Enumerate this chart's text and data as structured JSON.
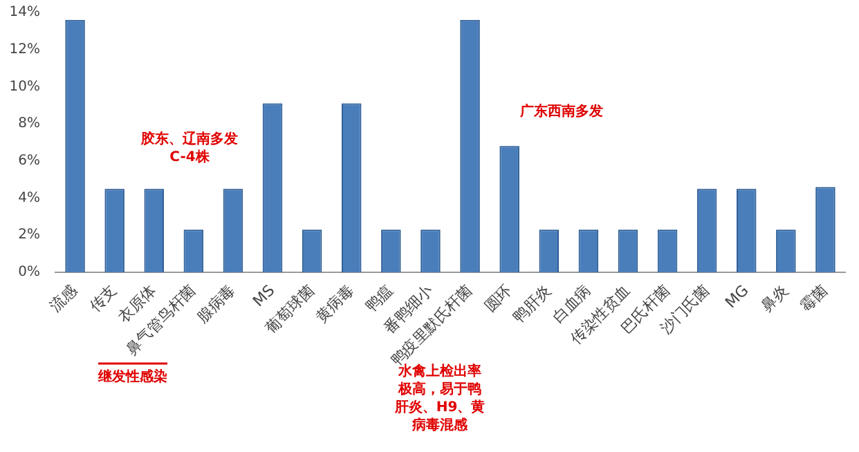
{
  "chart_data": {
    "type": "bar",
    "categories": [
      "流感",
      "传支",
      "衣原体",
      "鼻气管鸟杆菌",
      "腺病毒",
      "MS",
      "葡萄球菌",
      "黄病毒",
      "鸭瘟",
      "番鸭细小",
      "鸭疫里默氏杆菌",
      "圆环",
      "鸭肝炎",
      "白血病",
      "传染性贫血",
      "巴氏杆菌",
      "沙门氏菌",
      "MG",
      "鼻炎",
      "霉菌"
    ],
    "values": [
      13.6,
      4.5,
      4.5,
      2.3,
      4.5,
      9.1,
      2.3,
      9.1,
      2.3,
      2.3,
      13.6,
      6.8,
      2.3,
      2.3,
      2.3,
      2.3,
      4.5,
      4.5,
      2.3,
      4.6
    ],
    "color": "#4a7ebb",
    "ylim": [
      0,
      14
    ],
    "yticks": [
      {
        "value": 0,
        "label": "0%"
      },
      {
        "value": 2,
        "label": "2%"
      },
      {
        "value": 4,
        "label": "4%"
      },
      {
        "value": 6,
        "label": "6%"
      },
      {
        "value": 8,
        "label": "8%"
      },
      {
        "value": 10,
        "label": "10%"
      },
      {
        "value": 12,
        "label": "12%"
      },
      {
        "value": 14,
        "label": "14%"
      }
    ],
    "grid": false,
    "annotations": [
      "胶东、辽南多发C-4株",
      "广东西南多发",
      "继发性感染",
      "水禽上检出率极高，易于鸭肝炎、H9、黄病毒混感"
    ]
  }
}
